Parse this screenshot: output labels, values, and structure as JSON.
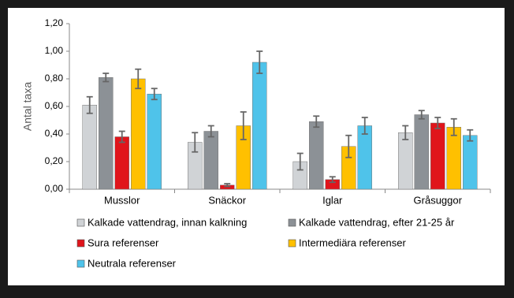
{
  "chart_data": {
    "type": "bar",
    "y_label": "Antal taxa",
    "categories": [
      "Musslor",
      "Snäckor",
      "Iglar",
      "Gråsuggor"
    ],
    "series": [
      {
        "name": "Kalkade vattendrag, innan kalkning",
        "color": "#d0d3d6",
        "values": [
          0.61,
          0.34,
          0.2,
          0.41
        ],
        "errors": [
          0.06,
          0.07,
          0.06,
          0.05
        ]
      },
      {
        "name": "Kalkade vattendrag, efter 21-25 år",
        "color": "#8c9196",
        "values": [
          0.81,
          0.42,
          0.49,
          0.54
        ],
        "errors": [
          0.03,
          0.04,
          0.04,
          0.03
        ]
      },
      {
        "name": "Sura referenser",
        "color": "#e0151b",
        "values": [
          0.38,
          0.03,
          0.07,
          0.48
        ],
        "errors": [
          0.04,
          0.01,
          0.02,
          0.04
        ]
      },
      {
        "name": "Intermediära referenser",
        "color": "#ffc000",
        "values": [
          0.8,
          0.46,
          0.31,
          0.45
        ],
        "errors": [
          0.07,
          0.1,
          0.08,
          0.06
        ]
      },
      {
        "name": "Neutrala referenser",
        "color": "#4fc3ea",
        "values": [
          0.69,
          0.92,
          0.46,
          0.39
        ],
        "errors": [
          0.04,
          0.08,
          0.06,
          0.04
        ]
      }
    ],
    "ylim": [
      0,
      1.2
    ],
    "yticks": [
      {
        "value": 0,
        "label": "0,00"
      },
      {
        "value": 0.2,
        "label": "0,20"
      },
      {
        "value": 0.4,
        "label": "0,40"
      },
      {
        "value": 0.6,
        "label": "0,60"
      },
      {
        "value": 0.8,
        "label": "0,80"
      },
      {
        "value": 1.0,
        "label": "1,00"
      },
      {
        "value": 1.2,
        "label": "1,20"
      }
    ],
    "legend": "bottom"
  }
}
